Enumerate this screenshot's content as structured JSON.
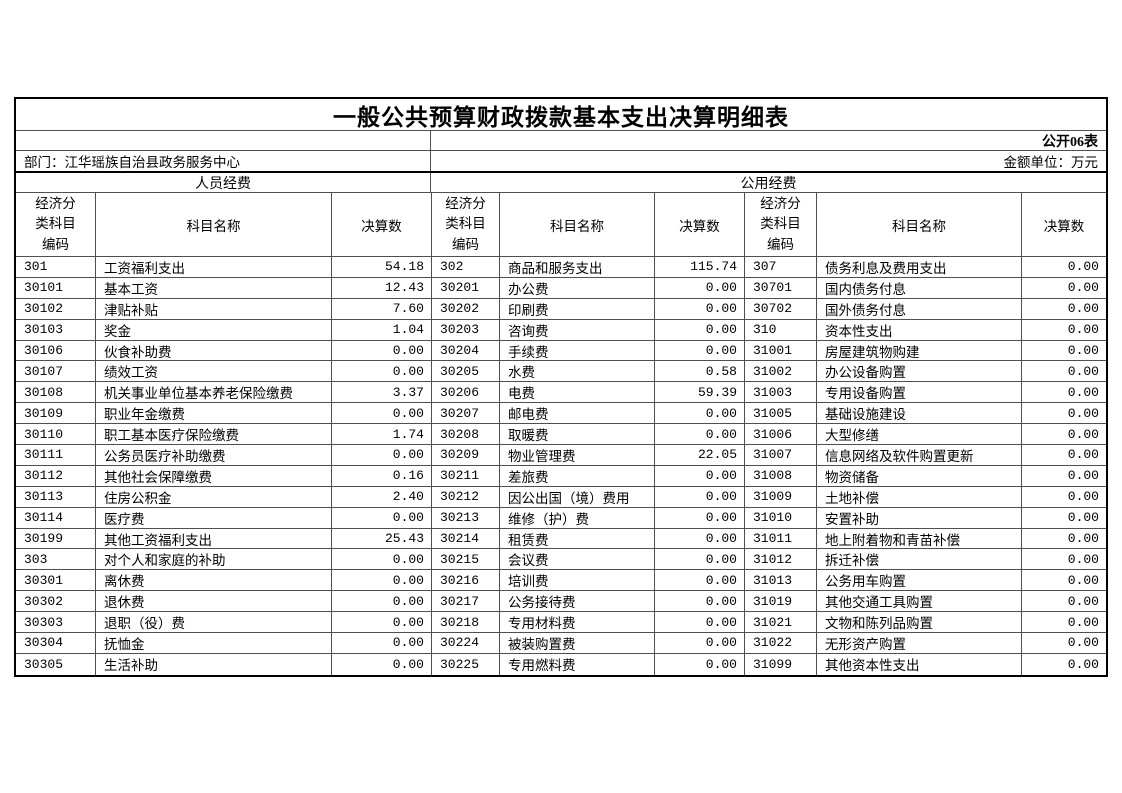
{
  "header": {
    "title": "一般公共预算财政拨款基本支出决算明细表",
    "table_code": "公开06表",
    "department": "部门：江华瑶族自治县政务服务中心",
    "unit_note": "金额单位：万元"
  },
  "group_headers": {
    "personnel": "人员经费",
    "public": "公用经费"
  },
  "column_headers": {
    "code": "经济分类科目编码",
    "name": "科目名称",
    "value": "决算数"
  },
  "colors": {
    "background": "#ffffff",
    "text": "#000000",
    "outer_border": "#000000",
    "inner_border": "#4f4f4f"
  },
  "sections": {
    "personnel": {
      "rows": [
        {
          "code": "301",
          "name": "工资福利支出",
          "value": "54.18"
        },
        {
          "code": "30101",
          "name": "基本工资",
          "value": "12.43"
        },
        {
          "code": "30102",
          "name": "津贴补贴",
          "value": "7.60"
        },
        {
          "code": "30103",
          "name": "奖金",
          "value": "1.04"
        },
        {
          "code": "30106",
          "name": "伙食补助费",
          "value": "0.00"
        },
        {
          "code": "30107",
          "name": "绩效工资",
          "value": "0.00"
        },
        {
          "code": "30108",
          "name": "机关事业单位基本养老保险缴费",
          "value": "3.37"
        },
        {
          "code": "30109",
          "name": "职业年金缴费",
          "value": "0.00"
        },
        {
          "code": "30110",
          "name": "职工基本医疗保险缴费",
          "value": "1.74"
        },
        {
          "code": "30111",
          "name": "公务员医疗补助缴费",
          "value": "0.00"
        },
        {
          "code": "30112",
          "name": "其他社会保障缴费",
          "value": "0.16"
        },
        {
          "code": "30113",
          "name": "住房公积金",
          "value": "2.40"
        },
        {
          "code": "30114",
          "name": "医疗费",
          "value": "0.00"
        },
        {
          "code": "30199",
          "name": "其他工资福利支出",
          "value": "25.43"
        },
        {
          "code": "303",
          "name": "对个人和家庭的补助",
          "value": "0.00"
        },
        {
          "code": "30301",
          "name": "离休费",
          "value": "0.00"
        },
        {
          "code": "30302",
          "name": "退休费",
          "value": "0.00"
        },
        {
          "code": "30303",
          "name": "退职（役）费",
          "value": "0.00"
        },
        {
          "code": "30304",
          "name": "抚恤金",
          "value": "0.00"
        },
        {
          "code": "30305",
          "name": "生活补助",
          "value": "0.00"
        }
      ]
    },
    "public_left": {
      "rows": [
        {
          "code": "302",
          "name": "商品和服务支出",
          "value": "115.74"
        },
        {
          "code": "30201",
          "name": "办公费",
          "value": "0.00"
        },
        {
          "code": "30202",
          "name": "印刷费",
          "value": "0.00"
        },
        {
          "code": "30203",
          "name": "咨询费",
          "value": "0.00"
        },
        {
          "code": "30204",
          "name": "手续费",
          "value": "0.00"
        },
        {
          "code": "30205",
          "name": "水费",
          "value": "0.58"
        },
        {
          "code": "30206",
          "name": "电费",
          "value": "59.39"
        },
        {
          "code": "30207",
          "name": "邮电费",
          "value": "0.00"
        },
        {
          "code": "30208",
          "name": "取暖费",
          "value": "0.00"
        },
        {
          "code": "30209",
          "name": "物业管理费",
          "value": "22.05"
        },
        {
          "code": "30211",
          "name": "差旅费",
          "value": "0.00"
        },
        {
          "code": "30212",
          "name": "因公出国（境）费用",
          "value": "0.00"
        },
        {
          "code": "30213",
          "name": "维修（护）费",
          "value": "0.00"
        },
        {
          "code": "30214",
          "name": "租赁费",
          "value": "0.00"
        },
        {
          "code": "30215",
          "name": "会议费",
          "value": "0.00"
        },
        {
          "code": "30216",
          "name": "培训费",
          "value": "0.00"
        },
        {
          "code": "30217",
          "name": "公务接待费",
          "value": "0.00"
        },
        {
          "code": "30218",
          "name": "专用材料费",
          "value": "0.00"
        },
        {
          "code": "30224",
          "name": "被装购置费",
          "value": "0.00"
        },
        {
          "code": "30225",
          "name": "专用燃料费",
          "value": "0.00"
        }
      ]
    },
    "public_right": {
      "rows": [
        {
          "code": "307",
          "name": "债务利息及费用支出",
          "value": "0.00"
        },
        {
          "code": "30701",
          "name": "国内债务付息",
          "value": "0.00"
        },
        {
          "code": "30702",
          "name": "国外债务付息",
          "value": "0.00"
        },
        {
          "code": "310",
          "name": "资本性支出",
          "value": "0.00"
        },
        {
          "code": "31001",
          "name": "房屋建筑物购建",
          "value": "0.00"
        },
        {
          "code": "31002",
          "name": "办公设备购置",
          "value": "0.00"
        },
        {
          "code": "31003",
          "name": "专用设备购置",
          "value": "0.00"
        },
        {
          "code": "31005",
          "name": "基础设施建设",
          "value": "0.00"
        },
        {
          "code": "31006",
          "name": "大型修缮",
          "value": "0.00"
        },
        {
          "code": "31007",
          "name": "信息网络及软件购置更新",
          "value": "0.00"
        },
        {
          "code": "31008",
          "name": "物资储备",
          "value": "0.00"
        },
        {
          "code": "31009",
          "name": "土地补偿",
          "value": "0.00"
        },
        {
          "code": "31010",
          "name": "安置补助",
          "value": "0.00"
        },
        {
          "code": "31011",
          "name": "地上附着物和青苗补偿",
          "value": "0.00"
        },
        {
          "code": "31012",
          "name": "拆迁补偿",
          "value": "0.00"
        },
        {
          "code": "31013",
          "name": "公务用车购置",
          "value": "0.00"
        },
        {
          "code": "31019",
          "name": "其他交通工具购置",
          "value": "0.00"
        },
        {
          "code": "31021",
          "name": "文物和陈列品购置",
          "value": "0.00"
        },
        {
          "code": "31022",
          "name": "无形资产购置",
          "value": "0.00"
        },
        {
          "code": "31099",
          "name": "其他资本性支出",
          "value": "0.00"
        }
      ]
    }
  }
}
